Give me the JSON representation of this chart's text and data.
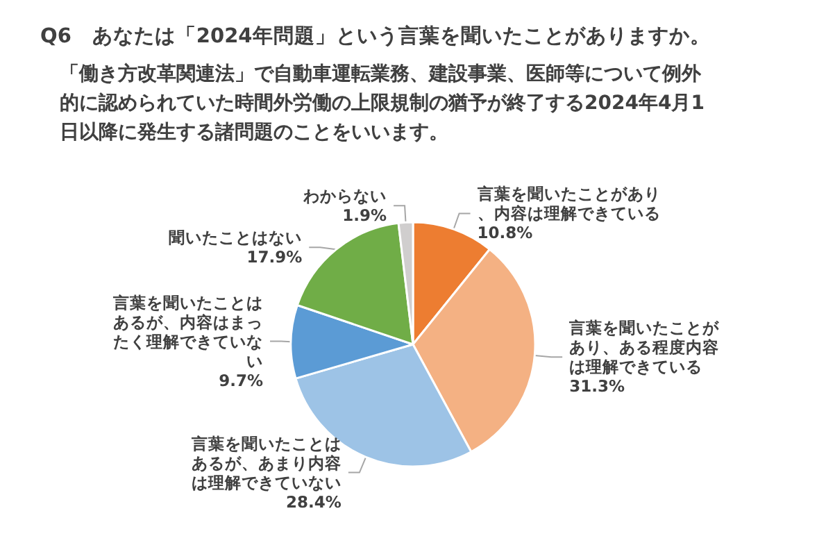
{
  "chart_data": {
    "type": "pie",
    "title": "Q6　あなたは「2024年問題」という言葉を聞いたことがありますか。",
    "subtitle": "「働き方改革関連法」で自動車運転業務、建設事業、医師等について例外的に認められていた時間外労働の上限規制の猶予が終了する2024年4月1日以降に発生する諸問題のことをいいます。",
    "categories": [
      "言葉を聞いたことがあり、内容は理解できている",
      "言葉を聞いたことがあり、ある程度内容は理解できている",
      "言葉を聞いたことはあるが、あまり内容は理解できていない",
      "言葉を聞いたことはあるが、内容はまったく理解できていない",
      "聞いたことはない",
      "わからない"
    ],
    "values": [
      10.8,
      31.3,
      28.4,
      9.7,
      17.9,
      1.9
    ],
    "value_labels": [
      "10.8%",
      "31.3%",
      "28.4%",
      "9.7%",
      "17.9%",
      "1.9%"
    ],
    "colors": [
      "#ed7d31",
      "#f4b183",
      "#9dc3e6",
      "#5b9bd5",
      "#70ad47",
      "#d0cece"
    ],
    "legend": false
  }
}
